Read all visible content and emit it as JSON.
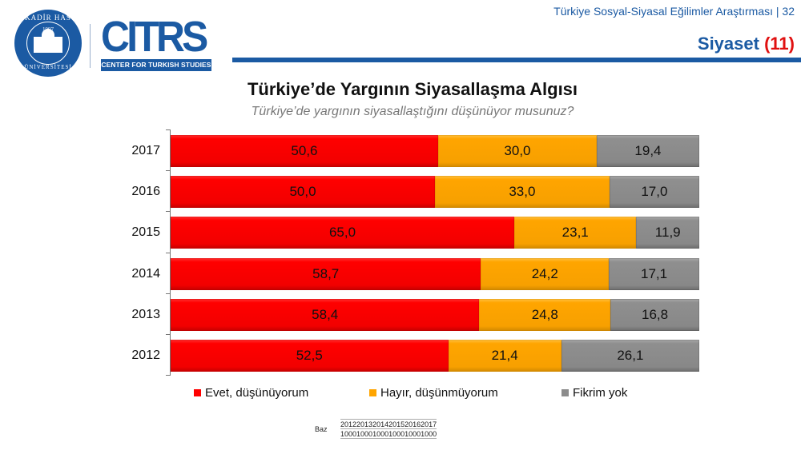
{
  "header": {
    "survey_title": "Türkiye Sosyal-Siyasal Eğilimler Araştırması | 32",
    "section_label": "Siyaset",
    "section_number": "(11)",
    "accent_color": "#1b5aa3",
    "number_color": "#e01010"
  },
  "logos": {
    "university": {
      "top_text": "KADİR HAS",
      "year": "1997",
      "bottom_text": "ÜNİVERSİTESİ"
    },
    "center": {
      "acronym": "CITRS",
      "full_name": "CENTER FOR TURKISH STUDIES"
    }
  },
  "chart_data": {
    "type": "bar",
    "orientation": "horizontal",
    "stacked": true,
    "percent": true,
    "title": "Türkiye’de Yargının Siyasallaşma Algısı",
    "subtitle": "Türkiye’de yargının siyasallaştığını düşünüyor musunuz?",
    "categories": [
      "2017",
      "2016",
      "2015",
      "2014",
      "2013",
      "2012"
    ],
    "series": [
      {
        "name": "Evet, düşünüyorum",
        "color": "#ff0000",
        "values": [
          50.6,
          50.0,
          65.0,
          58.7,
          58.4,
          52.5
        ],
        "labels": [
          "50,6",
          "50,0",
          "65,0",
          "58,7",
          "58,4",
          "52,5"
        ]
      },
      {
        "name": "Hayır, düşünmüyorum",
        "color": "#ffa500",
        "values": [
          30.0,
          33.0,
          23.1,
          24.2,
          24.8,
          21.4
        ],
        "labels": [
          "30,0",
          "33,0",
          "23,1",
          "24,2",
          "24,8",
          "21,4"
        ]
      },
      {
        "name": "Fikrim yok",
        "color": "#8c8c8c",
        "values": [
          19.4,
          17.0,
          11.9,
          17.1,
          16.8,
          26.1
        ],
        "labels": [
          "19,4",
          "17,0",
          "11,9",
          "17,1",
          "16,8",
          "26,1"
        ]
      }
    ],
    "xlim": [
      0,
      100
    ],
    "grid": false,
    "legend_position": "bottom",
    "base": {
      "label": "Baz",
      "years": [
        "2012",
        "2013",
        "2014",
        "2015",
        "2016",
        "2017"
      ],
      "values": [
        "1000",
        "1000",
        "1000",
        "1000",
        "1000",
        "1000"
      ]
    }
  }
}
